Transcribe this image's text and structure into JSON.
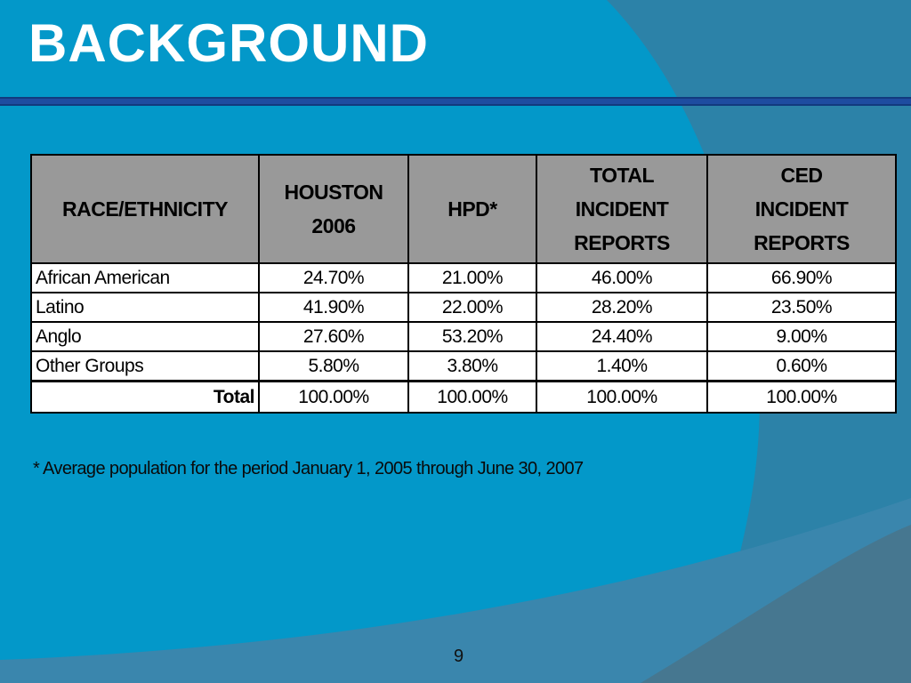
{
  "title": "BACKGROUND",
  "table": {
    "headers": [
      [
        "RACE/ETHNICITY"
      ],
      [
        "HOUSTON",
        "2006"
      ],
      [
        "HPD*"
      ],
      [
        "TOTAL",
        "INCIDENT",
        "REPORTS"
      ],
      [
        "CED",
        "INCIDENT",
        "REPORTS"
      ]
    ],
    "rows": [
      [
        "African American",
        "24.70%",
        "21.00%",
        "46.00%",
        "66.90%"
      ],
      [
        "Latino",
        "41.90%",
        "22.00%",
        "28.20%",
        "23.50%"
      ],
      [
        "Anglo",
        "27.60%",
        "53.20%",
        "24.40%",
        "9.00%"
      ],
      [
        "Other Groups",
        "5.80%",
        "3.80%",
        "1.40%",
        "0.60%"
      ]
    ],
    "total_row": [
      "Total",
      "100.00%",
      "100.00%",
      "100.00%",
      "100.00%"
    ]
  },
  "footnote": "* Average population for the period January 1, 2005 through June 30, 2007",
  "page_number": "9",
  "colors": {
    "background": "#0398c9",
    "shape_light": "#2c82a8",
    "shape_dark": "#3f7690",
    "title_rule": "#1e4ca0",
    "header_fill": "#999999"
  }
}
